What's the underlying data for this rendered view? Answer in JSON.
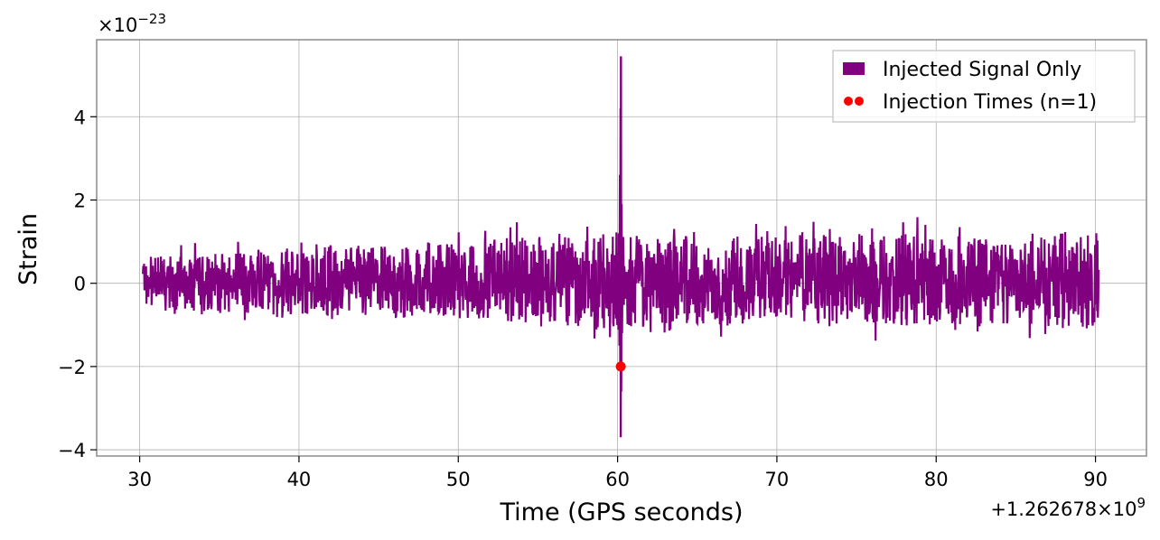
{
  "chart_data": {
    "type": "line",
    "xlabel": "Time (GPS seconds)",
    "ylabel": "Strain",
    "x_offset_label": "+1.262678×10",
    "x_offset_exponent": "9",
    "y_multiplier_label": "×10",
    "y_multiplier_exponent": "−23",
    "x_offset": 1262678000,
    "y_scale": 1e-23,
    "xlim": [
      27.3,
      93.2
    ],
    "ylim": [
      -4.15,
      5.85
    ],
    "x_ticks": [
      30,
      40,
      50,
      60,
      70,
      80,
      90
    ],
    "x_tick_labels": [
      "30",
      "40",
      "50",
      "60",
      "70",
      "80",
      "90"
    ],
    "y_ticks": [
      -4,
      -2,
      0,
      2,
      4
    ],
    "y_tick_labels": [
      "−4",
      "−2",
      "0",
      "2",
      "4"
    ],
    "grid": true,
    "legend_position": "top-right",
    "series": [
      {
        "name": "Injected Signal Only",
        "style": "line",
        "color": "#800080",
        "x_start": 30.2,
        "x_end": 90.2,
        "noise_envelope": [
          {
            "x": 30.2,
            "min": -0.9,
            "max": 0.9
          },
          {
            "x": 40,
            "min": -1.1,
            "max": 1.2
          },
          {
            "x": 50,
            "min": -1.3,
            "max": 1.4
          },
          {
            "x": 55,
            "min": -1.4,
            "max": 1.6
          },
          {
            "x": 59,
            "min": -1.7,
            "max": 1.8
          },
          {
            "x": 62,
            "min": -1.5,
            "max": 1.6
          },
          {
            "x": 70,
            "min": -1.4,
            "max": 1.6
          },
          {
            "x": 80,
            "min": -1.5,
            "max": 1.7
          },
          {
            "x": 90.2,
            "min": -1.6,
            "max": 1.7
          }
        ],
        "peak": {
          "x": 60.2,
          "max": 5.45,
          "min": -3.7
        }
      },
      {
        "name": "Injection Times (n=1)",
        "style": "scatter",
        "color": "#ff0000",
        "points": [
          {
            "x": 60.2,
            "y": -2.0
          }
        ]
      }
    ]
  }
}
